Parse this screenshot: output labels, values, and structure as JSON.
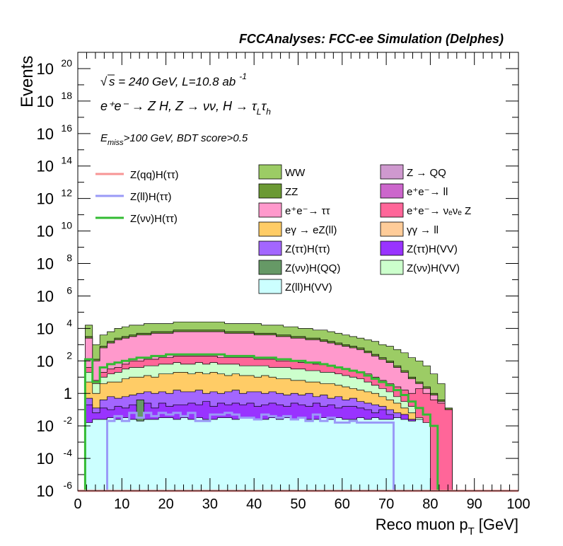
{
  "chart_data": {
    "type": "area",
    "title": "FCCAnalyses: FCC-ee Simulation (Delphes)",
    "xlabel": "Reco muon p",
    "xlabel_sub": "T",
    "xlabel_unit": "[GeV]",
    "ylabel": "Events",
    "y_scale": "log",
    "xlim": [
      0,
      100
    ],
    "ylim_exp": [
      -6,
      21
    ],
    "x_ticks": [
      "0",
      "10",
      "20",
      "30",
      "40",
      "50",
      "60",
      "70",
      "80",
      "90",
      "100"
    ],
    "y_ticks": [
      {
        "base": "10",
        "exp": "-6",
        "value": -6
      },
      {
        "base": "10",
        "exp": "-4",
        "value": -4
      },
      {
        "base": "10",
        "exp": "-2",
        "value": -2
      },
      {
        "base": "1",
        "exp": "",
        "value": 0
      },
      {
        "base": "10",
        "exp": "2",
        "value": 2
      },
      {
        "base": "10",
        "exp": "4",
        "value": 4
      },
      {
        "base": "10",
        "exp": "6",
        "value": 6
      },
      {
        "base": "10",
        "exp": "8",
        "value": 8
      },
      {
        "base": "10",
        "exp": "10",
        "value": 10
      },
      {
        "base": "10",
        "exp": "12",
        "value": 12
      },
      {
        "base": "10",
        "exp": "14",
        "value": 14
      },
      {
        "base": "10",
        "exp": "16",
        "value": 16
      },
      {
        "base": "10",
        "exp": "18",
        "value": 18
      },
      {
        "base": "10",
        "exp": "20",
        "value": 20
      }
    ],
    "annotations": {
      "energy": "s = 240 GeV, L=10.8 ab",
      "energy_exp": "-1",
      "process": "e⁺e⁻ → Z H, Z → νν, H → τ",
      "process_sub1": "L",
      "process_tau2": "τ",
      "process_sub2": "h",
      "cut_E": "E",
      "cut_sub": "miss",
      "cut_rest": ">100 GeV, BDT score>0.5"
    },
    "legend_signals": [
      {
        "label": "Z(qq)H(ττ)",
        "color": "#f79595"
      },
      {
        "label": "Z(ll)H(ττ)",
        "color": "#9a9af7"
      },
      {
        "label": "Z(νν)H(ττ)",
        "color": "#33bb33"
      }
    ],
    "legend_backgrounds": [
      {
        "label": "WW",
        "color": "#9ccc65"
      },
      {
        "label": "Z → QQ",
        "color": "#cf99cf"
      },
      {
        "label": "ZZ",
        "color": "#6b9933"
      },
      {
        "label": "e⁺e⁻→ ll",
        "color": "#cc66cc"
      },
      {
        "label": "e⁺e⁻→ ττ",
        "color": "#ff99cc"
      },
      {
        "label": "e⁺e⁻→ νₑνₑ Z",
        "color": "#ff6699"
      },
      {
        "label": "eγ → eZ(ll)",
        "color": "#ffcc66"
      },
      {
        "label": "γγ → ll",
        "color": "#ffcc99"
      },
      {
        "label": "Z(ττ)H(ττ)",
        "color": "#a366ff"
      },
      {
        "label": "Z(ττ)H(VV)",
        "color": "#9933ff"
      },
      {
        "label": "Z(νν)H(QQ)",
        "color": "#669966"
      },
      {
        "label": "Z(νν)H(VV)",
        "color": "#ccffcc"
      },
      {
        "label": "Z(ll)H(VV)",
        "color": "#ccffff"
      }
    ],
    "stack_series": [
      {
        "name": "Z(ll)H(VV)",
        "color": "#ccffff",
        "log_top": [
          -6,
          -1.8,
          -1.6,
          -1.6,
          -1.5,
          -1.6,
          -1.5,
          -1.6,
          -1.7,
          -1.6,
          -1.6,
          -1.5,
          -1.5,
          -1.6,
          -1.5,
          -1.6,
          -1.5,
          -1.6,
          -1.6,
          -1.5,
          -1.5,
          -1.6,
          -1.5,
          -1.5,
          -1.6,
          -1.6,
          -1.5,
          -1.6,
          -1.5,
          -1.6,
          -1.5,
          -1.6,
          -1.6,
          -1.5,
          -1.6,
          -1.5,
          -1.6,
          -1.6,
          -1.5,
          -1.6,
          -1.5,
          -1.6,
          -1.6,
          -1.5,
          -1.6,
          -1.7,
          -1.6,
          -1.8,
          -6,
          -6,
          -6,
          -6,
          -6,
          -6,
          -6,
          -6,
          -6,
          -6,
          -6,
          -6
        ]
      },
      {
        "name": "Z(νν)H(QQ)",
        "color": "#669966",
        "log_top": [
          -6,
          -6,
          -6,
          -6,
          -6,
          -6,
          -6,
          -6,
          -0.4,
          -6,
          -6,
          -6,
          -6,
          -6,
          -6,
          -6,
          -6,
          -6,
          -6,
          -6,
          -6,
          -6,
          -6,
          -6,
          -6,
          -6,
          -6,
          -6,
          -6,
          -6,
          -6,
          -6,
          -6,
          -6,
          -6,
          -6,
          -6,
          -6,
          -6,
          -6,
          -6,
          -6,
          -6,
          -6,
          -6,
          -6,
          -6,
          -6,
          -6,
          -6,
          -6,
          -6,
          -6,
          -6,
          -6,
          -6,
          -6,
          -6,
          -6,
          -6
        ]
      },
      {
        "name": "Z(ττ)H(VV)",
        "color": "#9933ff",
        "log_top": [
          -6,
          -0.7,
          -1.2,
          -0.9,
          -1.0,
          -0.8,
          -0.9,
          -0.7,
          -0.8,
          -0.6,
          -0.9,
          -0.6,
          -0.8,
          -0.7,
          -0.7,
          -0.6,
          -0.7,
          -0.5,
          -0.8,
          -0.6,
          -0.7,
          -0.6,
          -0.7,
          -0.6,
          -0.8,
          -0.7,
          -0.6,
          -0.7,
          -0.8,
          -0.6,
          -0.7,
          -0.8,
          -0.6,
          -0.8,
          -0.7,
          -0.9,
          -0.8,
          -0.8,
          -0.9,
          -1.0,
          -1.2,
          -1.0,
          -1.3,
          -1.5,
          -1.3,
          -1.6,
          -6,
          -6,
          -6,
          -6,
          -6,
          -6,
          -6,
          -6,
          -6,
          -6,
          -6,
          -6,
          -6,
          -6
        ]
      },
      {
        "name": "Z(ττ)H(ττ)",
        "color": "#a366ff",
        "log_top": [
          -6,
          -0.3,
          -0.9,
          -0.4,
          -0.2,
          -0.3,
          -0.2,
          -0.1,
          0.0,
          0.1,
          0.0,
          0.1,
          0.0,
          0.2,
          0.1,
          0.1,
          0.2,
          0.0,
          0.1,
          0.0,
          0.1,
          0.2,
          0.0,
          0.1,
          0.1,
          0.0,
          0.1,
          0.0,
          -0.1,
          0.0,
          -0.1,
          0.0,
          -0.2,
          -0.1,
          -0.3,
          -0.2,
          -0.4,
          -0.3,
          -0.5,
          -0.6,
          -0.7,
          -0.8,
          -1.0,
          -1.2,
          -1.3,
          -1.6,
          -6,
          -6,
          -6,
          -6,
          -6,
          -6,
          -6,
          -6,
          -6,
          -6,
          -6,
          -6,
          -6,
          -6
        ]
      },
      {
        "name": "eγ → eZ(ll)",
        "color": "#ffcc66",
        "log_top": [
          -6,
          0.7,
          0.0,
          0.6,
          0.7,
          0.7,
          0.9,
          1.0,
          1.0,
          1.1,
          1.0,
          1.2,
          1.2,
          1.3,
          1.3,
          1.2,
          1.3,
          1.2,
          1.3,
          1.2,
          1.1,
          1.2,
          1.1,
          1.1,
          1.0,
          1.1,
          1.0,
          0.9,
          0.9,
          0.8,
          0.8,
          0.7,
          0.7,
          0.6,
          0.6,
          0.5,
          0.4,
          0.3,
          0.2,
          0.1,
          0.0,
          -0.2,
          -0.4,
          -0.6,
          -0.9,
          -1.2,
          -6,
          -6,
          -6,
          -6,
          -6,
          -6,
          -6,
          -6,
          -6,
          -6,
          -6,
          -6,
          -6,
          -6
        ]
      },
      {
        "name": "Z(νν)H(VV)",
        "color": "#ccffcc",
        "log_top": [
          -6,
          1.3,
          0.6,
          1.0,
          1.2,
          1.3,
          1.5,
          1.6,
          1.6,
          1.7,
          1.7,
          1.8,
          1.8,
          1.9,
          1.8,
          1.8,
          1.9,
          1.8,
          1.9,
          1.8,
          1.8,
          1.8,
          1.7,
          1.7,
          1.7,
          1.7,
          1.6,
          1.6,
          1.6,
          1.5,
          1.5,
          1.4,
          1.4,
          1.3,
          1.3,
          1.2,
          1.1,
          1.0,
          0.9,
          0.7,
          0.5,
          0.3,
          0.1,
          -0.2,
          -0.5,
          -0.8,
          -1.5,
          -6,
          -6,
          -6,
          -6,
          -6,
          -6,
          -6,
          -6,
          -6,
          -6,
          -6,
          -6,
          -6
        ]
      },
      {
        "name": "e⁺e⁻→ νₑνₑ Z",
        "color": "#ff6699",
        "log_top": [
          -6,
          1.6,
          0.8,
          1.3,
          1.5,
          1.6,
          1.8,
          2.0,
          2.0,
          2.1,
          2.1,
          2.2,
          2.2,
          2.3,
          2.3,
          2.3,
          2.3,
          2.3,
          2.3,
          2.2,
          2.2,
          2.2,
          2.2,
          2.2,
          2.1,
          2.1,
          2.1,
          2.0,
          2.0,
          2.0,
          1.9,
          1.9,
          1.8,
          1.8,
          1.7,
          1.6,
          1.5,
          1.4,
          1.3,
          1.2,
          1.0,
          0.8,
          0.6,
          0.4,
          0.2,
          0.0,
          0.3,
          0.0,
          -0.4,
          -0.6,
          -1.0,
          -6,
          -6,
          -6,
          -6,
          -6,
          -6,
          -6,
          -6,
          -6
        ]
      },
      {
        "name": "e⁺e⁻→ ττ",
        "color": "#ff99cc",
        "log_top": [
          -6,
          3.4,
          2.0,
          2.8,
          3.1,
          3.3,
          3.4,
          3.5,
          3.6,
          3.6,
          3.7,
          3.7,
          3.7,
          3.8,
          3.8,
          3.8,
          3.8,
          3.8,
          3.8,
          3.8,
          3.7,
          3.7,
          3.7,
          3.7,
          3.6,
          3.6,
          3.6,
          3.5,
          3.5,
          3.4,
          3.4,
          3.3,
          3.3,
          3.2,
          3.1,
          3.0,
          2.9,
          2.8,
          2.7,
          2.5,
          2.3,
          2.1,
          1.9,
          1.6,
          1.3,
          0.9,
          0.6,
          0.3,
          -0.1,
          -0.5,
          -1.0,
          -6,
          -6,
          -6,
          -6,
          -6,
          -6,
          -6,
          -6,
          -6
        ]
      },
      {
        "name": "ZZ",
        "color": "#6b9933",
        "log_top": [
          -6,
          3.5,
          2.1,
          2.9,
          3.2,
          3.4,
          3.5,
          3.6,
          3.7,
          3.7,
          3.8,
          3.8,
          3.8,
          3.9,
          3.9,
          3.9,
          3.9,
          3.9,
          3.9,
          3.9,
          3.8,
          3.8,
          3.8,
          3.8,
          3.7,
          3.7,
          3.7,
          3.6,
          3.6,
          3.5,
          3.5,
          3.4,
          3.4,
          3.3,
          3.2,
          3.1,
          3.0,
          2.9,
          2.8,
          2.6,
          2.4,
          2.2,
          2.0,
          1.7,
          1.4,
          1.0,
          0.7,
          0.4,
          0.0,
          -0.4,
          -0.9,
          -6,
          -6,
          -6,
          -6,
          -6,
          -6,
          -6,
          -6,
          -6
        ]
      },
      {
        "name": "WW",
        "color": "#9ccc65",
        "log_top": [
          -6,
          4.2,
          3.0,
          3.6,
          3.8,
          4.0,
          4.1,
          4.2,
          4.2,
          4.3,
          4.3,
          4.3,
          4.3,
          4.4,
          4.4,
          4.4,
          4.4,
          4.4,
          4.4,
          4.4,
          4.3,
          4.3,
          4.3,
          4.3,
          4.3,
          4.2,
          4.2,
          4.2,
          4.1,
          4.1,
          4.0,
          4.0,
          3.9,
          3.9,
          3.8,
          3.7,
          3.6,
          3.5,
          3.4,
          3.3,
          3.2,
          3.0,
          2.9,
          2.7,
          2.5,
          2.2,
          2.0,
          1.7,
          1.2,
          0.6,
          -6,
          -6,
          -6,
          -6,
          -6,
          -6,
          -6,
          -6,
          -6,
          -6
        ]
      }
    ],
    "signal_series": [
      {
        "name": "Z(νν)H(ττ)",
        "color": "#33bb33",
        "log_values": [
          -6,
          2.1,
          0.7,
          1.6,
          1.8,
          1.9,
          2.0,
          2.1,
          2.2,
          2.2,
          2.3,
          2.3,
          2.4,
          2.4,
          2.4,
          2.4,
          2.4,
          2.4,
          2.4,
          2.4,
          2.3,
          2.3,
          2.3,
          2.3,
          2.2,
          2.2,
          2.2,
          2.1,
          2.1,
          2.0,
          2.0,
          1.9,
          1.9,
          1.8,
          1.7,
          1.6,
          1.5,
          1.4,
          1.3,
          1.1,
          0.9,
          0.7,
          0.5,
          0.2,
          -0.1,
          -0.5,
          -0.9,
          -1.3,
          -2.0,
          -6,
          -6,
          -6,
          -6,
          -6,
          -6,
          -6,
          -6,
          -6,
          -6,
          -6
        ]
      },
      {
        "name": "Z(ll)H(ττ)",
        "color": "#9a9af7",
        "log_values": [
          -6,
          -6,
          -6,
          -6,
          -1.7,
          -1.4,
          -1.7,
          -1.2,
          -1.5,
          -1.2,
          -1.4,
          -1.2,
          -1.3,
          -1.2,
          -1.4,
          -1.2,
          -1.7,
          -1.7,
          -1.3,
          -1.3,
          -1.2,
          -1.3,
          -1.5,
          -1.5,
          -1.6,
          -1.3,
          -1.4,
          -1.5,
          -1.4,
          -1.6,
          -1.5,
          -1.7,
          -1.3,
          -1.7,
          -1.5,
          -1.8,
          -1.8,
          -1.7,
          -1.8,
          -1.8,
          -1.8,
          -1.8,
          -1.8,
          -6,
          -6,
          -6,
          -6,
          -6,
          -6,
          -6,
          -6,
          -6,
          -6,
          -6,
          -6,
          -6,
          -6,
          -6,
          -6,
          -6
        ]
      },
      {
        "name": "Z(qq)H(ττ)",
        "color": "#f79595",
        "log_values": [
          -6,
          -6,
          -6,
          -6,
          -6,
          -6,
          -6,
          -6,
          -6,
          -6,
          -6,
          -6,
          -6,
          -6,
          -6,
          -6,
          -6,
          -6,
          -6,
          -6,
          -6,
          -6,
          -6,
          -6,
          -6,
          -6,
          -6,
          -6,
          -6,
          -6,
          -6,
          -6,
          -6,
          -6,
          -6,
          -6,
          -6,
          -6,
          -6,
          -6,
          -6,
          -6,
          -6,
          -6,
          -6,
          -6,
          -6,
          -6,
          -6,
          -6,
          -6,
          -6,
          -6,
          -6,
          -6,
          -6,
          -6,
          -6,
          -6,
          -6
        ]
      }
    ]
  }
}
